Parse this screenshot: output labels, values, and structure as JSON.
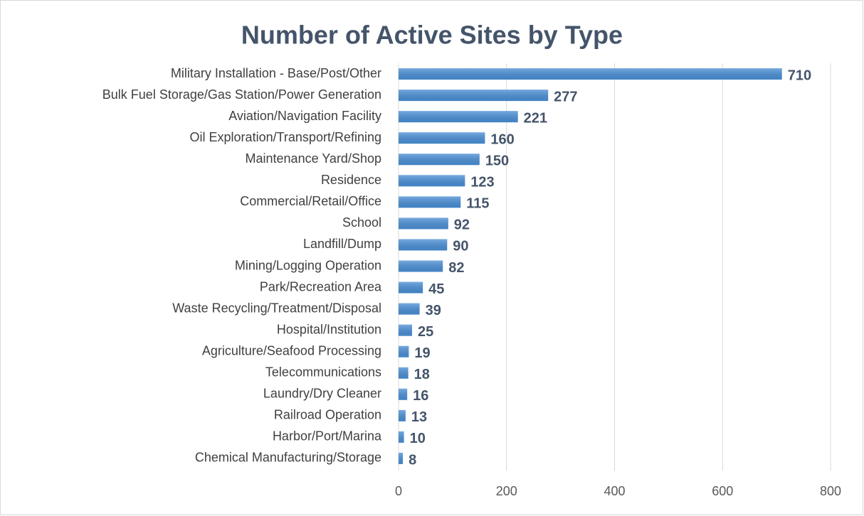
{
  "chart_data": {
    "type": "barh",
    "title": "Number of Active Sites by Type",
    "categories": [
      "Military Installation - Base/Post/Other",
      "Bulk Fuel Storage/Gas Station/Power Generation",
      "Aviation/Navigation Facility",
      "Oil Exploration/Transport/Refining",
      "Maintenance Yard/Shop",
      "Residence",
      "Commercial/Retail/Office",
      "School",
      "Landfill/Dump",
      "Mining/Logging Operation",
      "Park/Recreation Area",
      "Waste Recycling/Treatment/Disposal",
      "Hospital/Institution",
      "Agriculture/Seafood Processing",
      "Telecommunications",
      "Laundry/Dry Cleaner",
      "Railroad Operation",
      "Harbor/Port/Marina",
      "Chemical Manufacturing/Storage"
    ],
    "values": [
      710,
      277,
      221,
      160,
      150,
      123,
      115,
      92,
      90,
      82,
      45,
      39,
      25,
      19,
      18,
      16,
      13,
      10,
      8
    ],
    "color": "#4a8fd6",
    "xlim": [
      0,
      800
    ],
    "xticks": [
      0,
      200,
      400,
      600,
      800
    ],
    "grid": true
  }
}
